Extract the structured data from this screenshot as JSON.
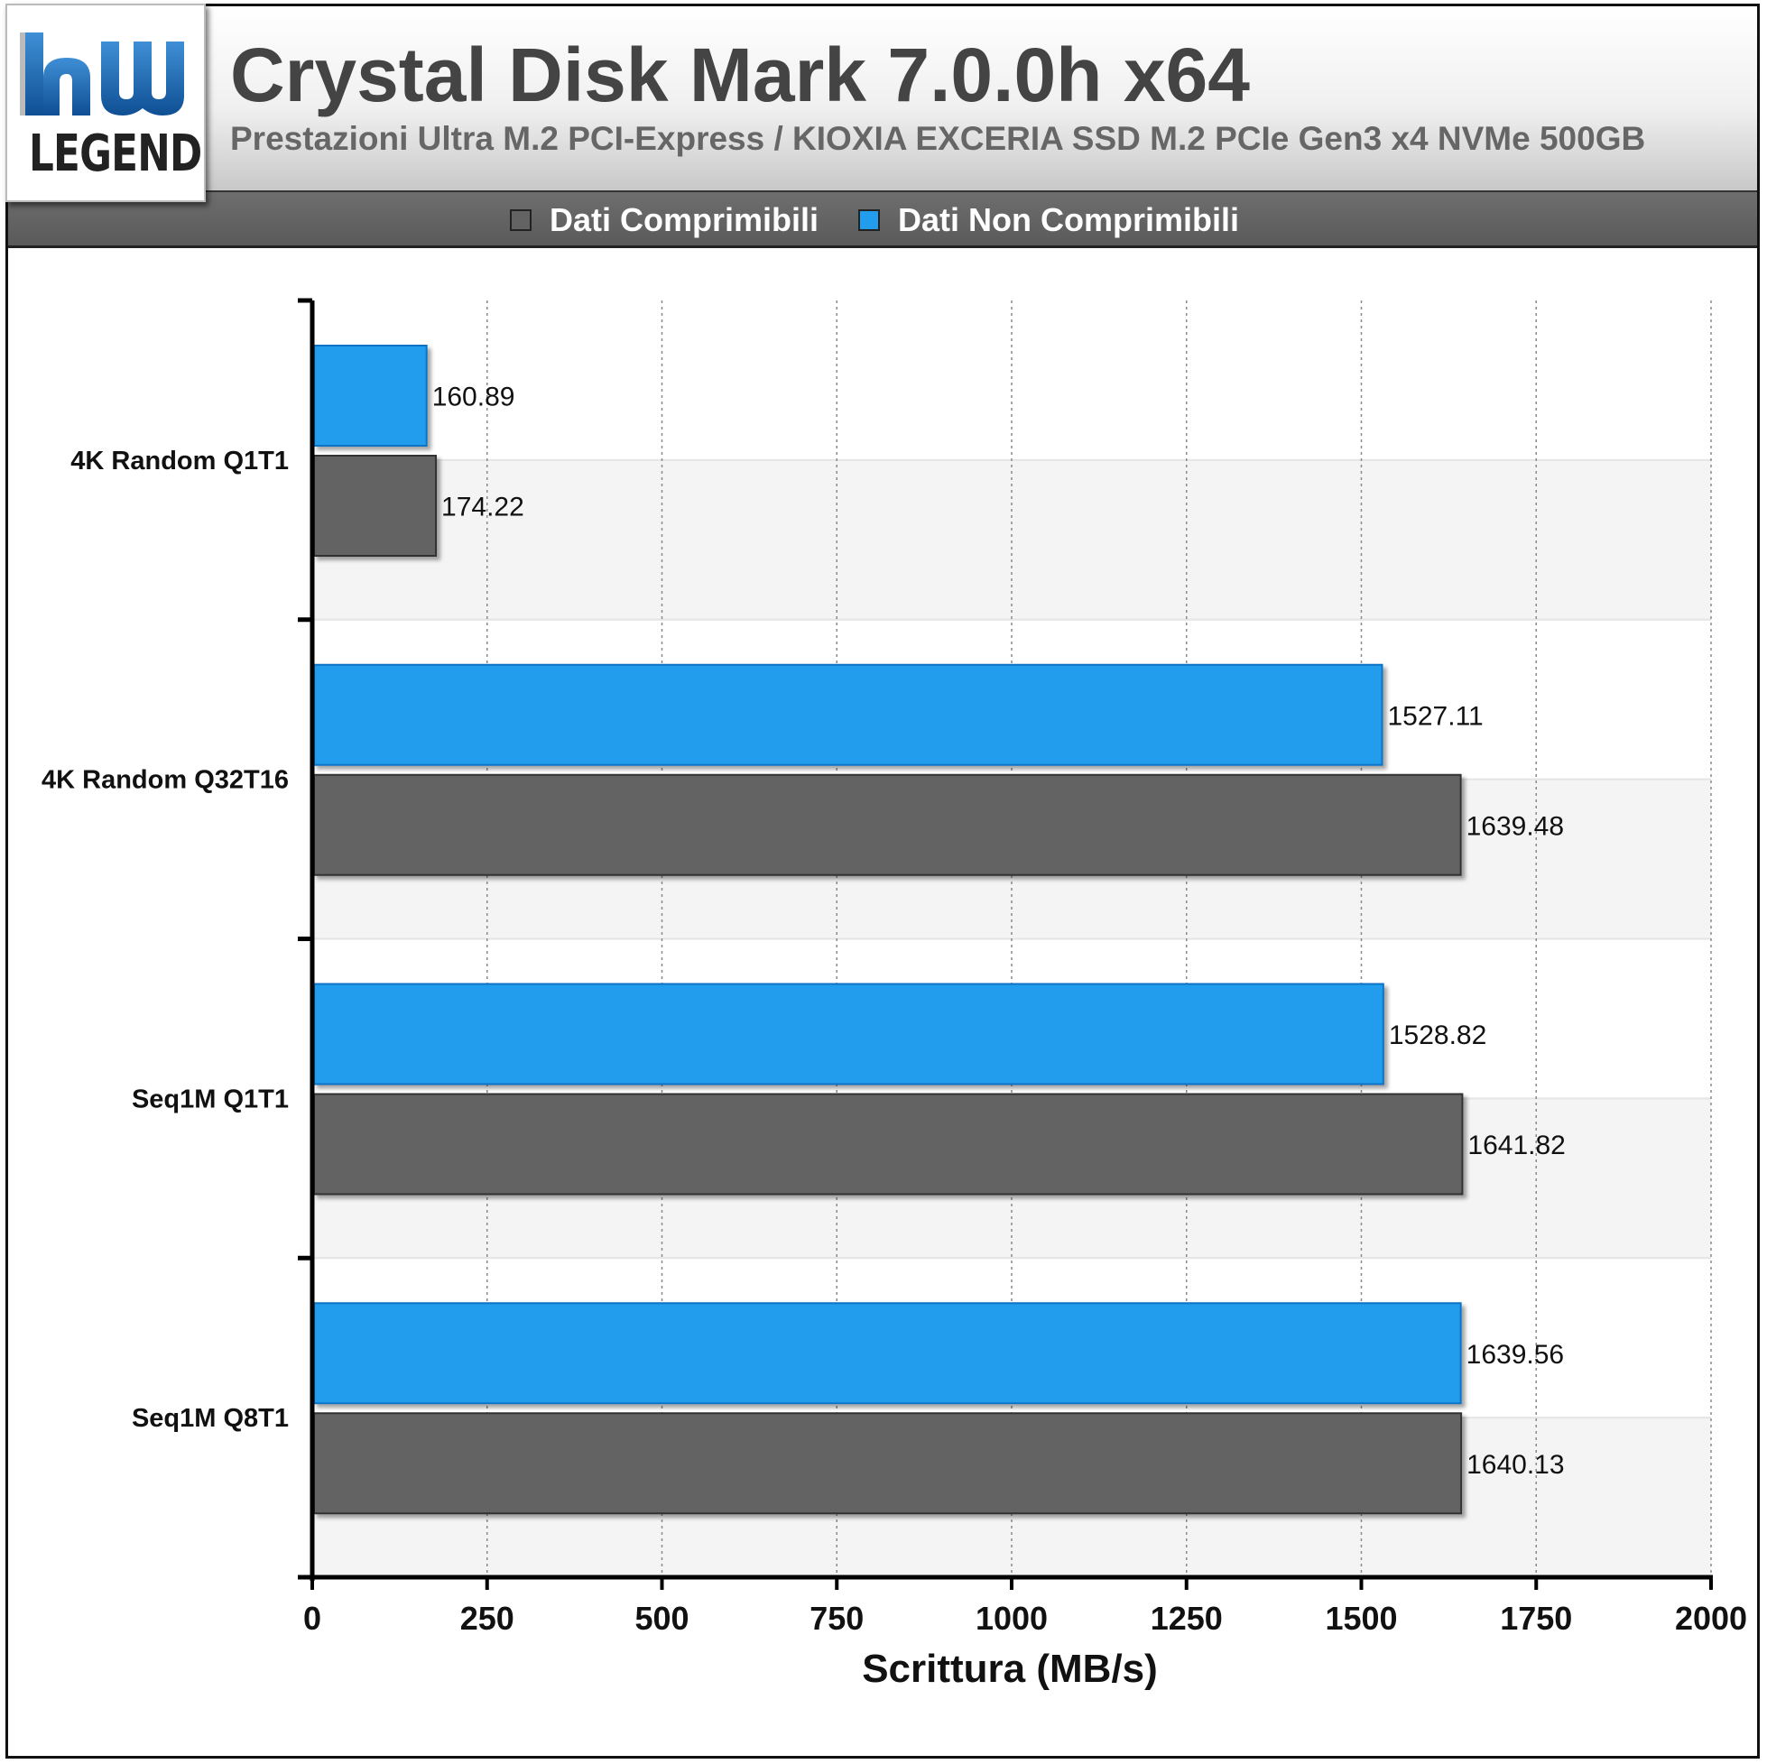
{
  "logo": {
    "mark": "hw",
    "text": "LEGEND",
    "colors": {
      "mark": "#1a66b0",
      "text": "#222222"
    }
  },
  "header": {
    "title": "Crystal Disk Mark 7.0.0h x64",
    "subtitle": "Prestazioni Ultra M.2 PCI-Express / KIOXIA EXCERIA SSD M.2 PCIe Gen3 x4 NVMe 500GB"
  },
  "chart_data": {
    "type": "bar",
    "orientation": "horizontal",
    "title": "Crystal Disk Mark 7.0.0h x64",
    "subtitle": "Prestazioni Ultra M.2 PCI-Express / KIOXIA EXCERIA SSD M.2 PCIe Gen3 x4 NVMe 500GB",
    "xlabel": "Scrittura (MB/s)",
    "ylabel": "",
    "xlim": [
      0,
      2000
    ],
    "xticks": [
      0,
      250,
      500,
      750,
      1000,
      1250,
      1500,
      1750,
      2000
    ],
    "categories": [
      "4K Random Q1T1",
      "4K Random Q32T16",
      "Seq1M Q1T1",
      "Seq1M Q8T1"
    ],
    "series": [
      {
        "name": "Dati Non Comprimibili",
        "color": "#229ded",
        "values": [
          160.89,
          1527.11,
          1528.82,
          1639.56
        ]
      },
      {
        "name": "Dati Comprimibili",
        "color": "#636363",
        "values": [
          174.22,
          1639.48,
          1641.82,
          1640.13
        ]
      }
    ],
    "legend": {
      "position": "top",
      "entries": [
        {
          "label": "Dati Comprimibili",
          "color": "#636363"
        },
        {
          "label": "Dati Non Comprimibili",
          "color": "#229ded"
        }
      ]
    },
    "grid": {
      "vertical": true,
      "style": "dotted"
    }
  }
}
